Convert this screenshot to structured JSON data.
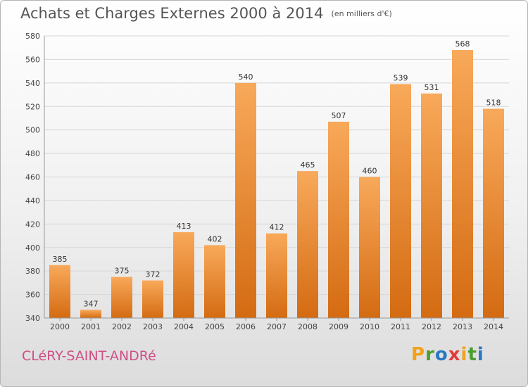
{
  "title": "Achats et Charges Externes 2000 à 2014",
  "unit": "(en milliers d'€)",
  "commune": "CLéRY-SAINT-ANDRé",
  "brand": {
    "letters": [
      "P",
      "r",
      "o",
      "x",
      "i",
      "t",
      "i"
    ],
    "colors": [
      "#f0a21b",
      "#4a9d2f",
      "#2878c3",
      "#e23a3a",
      "#f0a21b",
      "#4a9d2f",
      "#2878c3"
    ]
  },
  "colors": {
    "bar_top": "#f8a95a",
    "bar_bottom": "#d46b12",
    "grid": "#d7d7d7"
  },
  "chart_data": {
    "type": "bar",
    "categories": [
      "2000",
      "2001",
      "2002",
      "2003",
      "2004",
      "2005",
      "2006",
      "2007",
      "2008",
      "2009",
      "2010",
      "2011",
      "2012",
      "2013",
      "2014"
    ],
    "values": [
      385,
      347,
      375,
      372,
      413,
      402,
      540,
      412,
      465,
      507,
      460,
      539,
      531,
      568,
      518
    ],
    "ylim": [
      340,
      580
    ],
    "yticks": [
      340,
      360,
      380,
      400,
      420,
      440,
      460,
      480,
      500,
      520,
      540,
      560,
      580
    ],
    "grid": true,
    "title": "Achats et Charges Externes 2000 à 2014",
    "xlabel": "",
    "ylabel": ""
  }
}
